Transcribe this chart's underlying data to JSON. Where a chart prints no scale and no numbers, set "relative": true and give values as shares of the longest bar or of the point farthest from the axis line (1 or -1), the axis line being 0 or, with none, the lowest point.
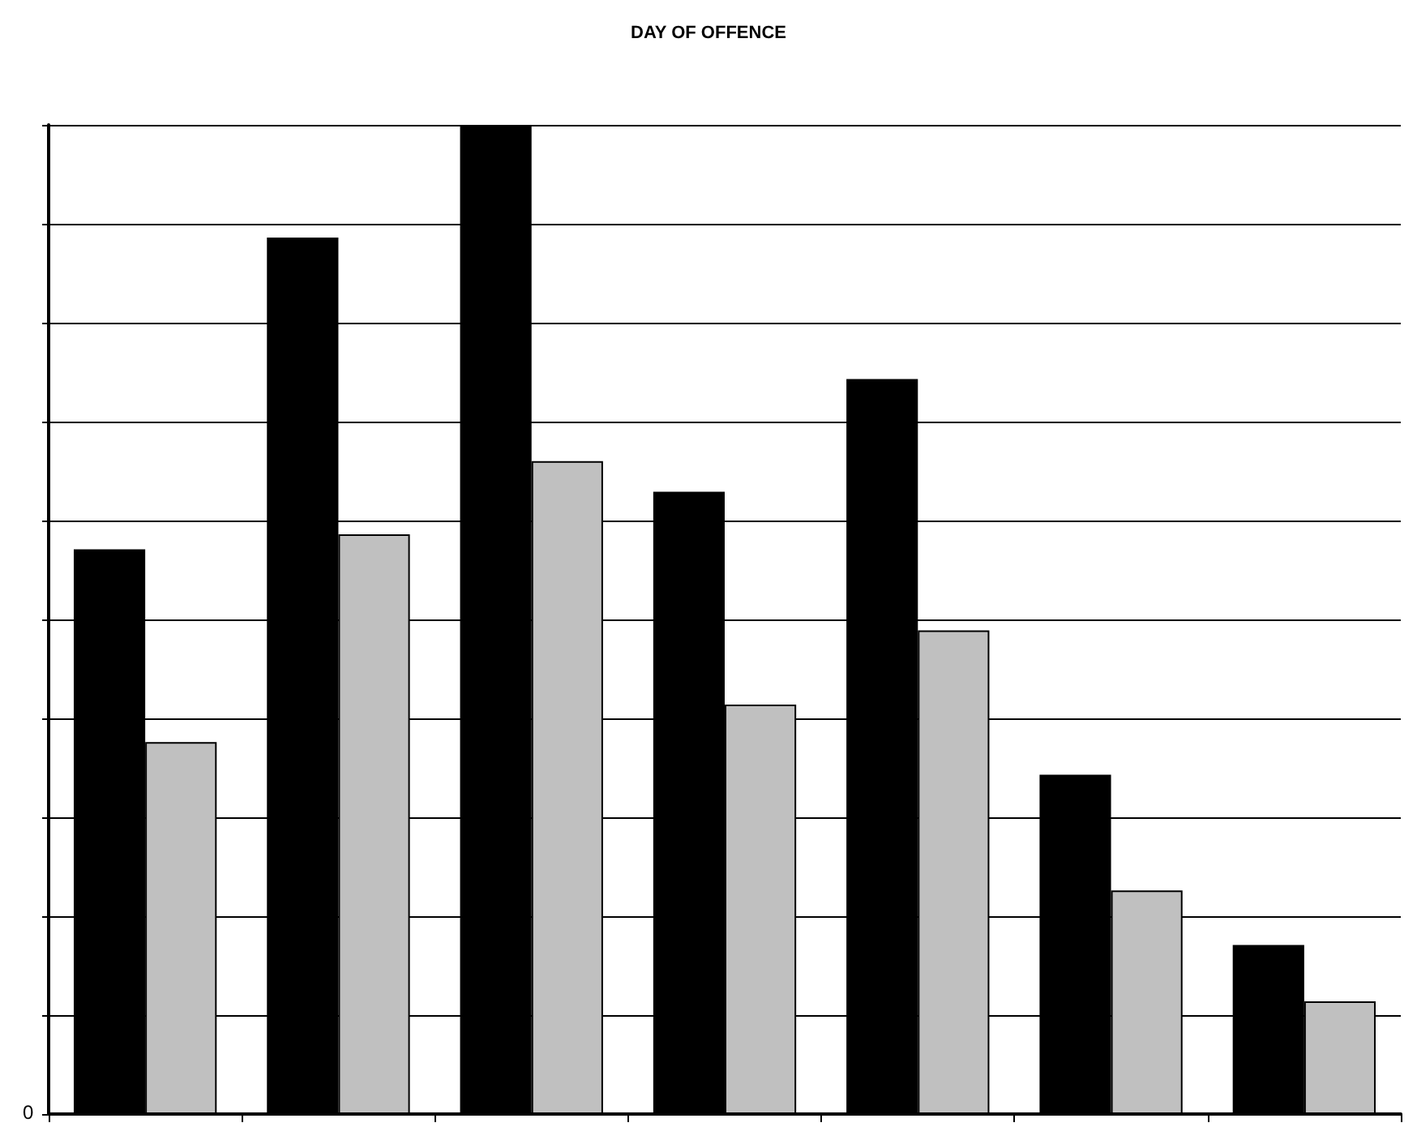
{
  "chart_data": {
    "type": "bar",
    "title": "DAY OF OFFENCE",
    "relative": true,
    "grid": "y",
    "annotations": [
      "0"
    ],
    "categories": [
      null,
      null,
      null,
      null,
      null,
      null,
      null
    ],
    "series": [
      {
        "color": "#000000",
        "values": [
          0.571,
          0.886,
          1,
          0.629,
          0.743,
          0.343,
          0.171
        ]
      },
      {
        "color": "#c0c0c0",
        "values": [
          0.376,
          0.586,
          0.66,
          0.414,
          0.489,
          0.226,
          0.114
        ]
      }
    ]
  }
}
